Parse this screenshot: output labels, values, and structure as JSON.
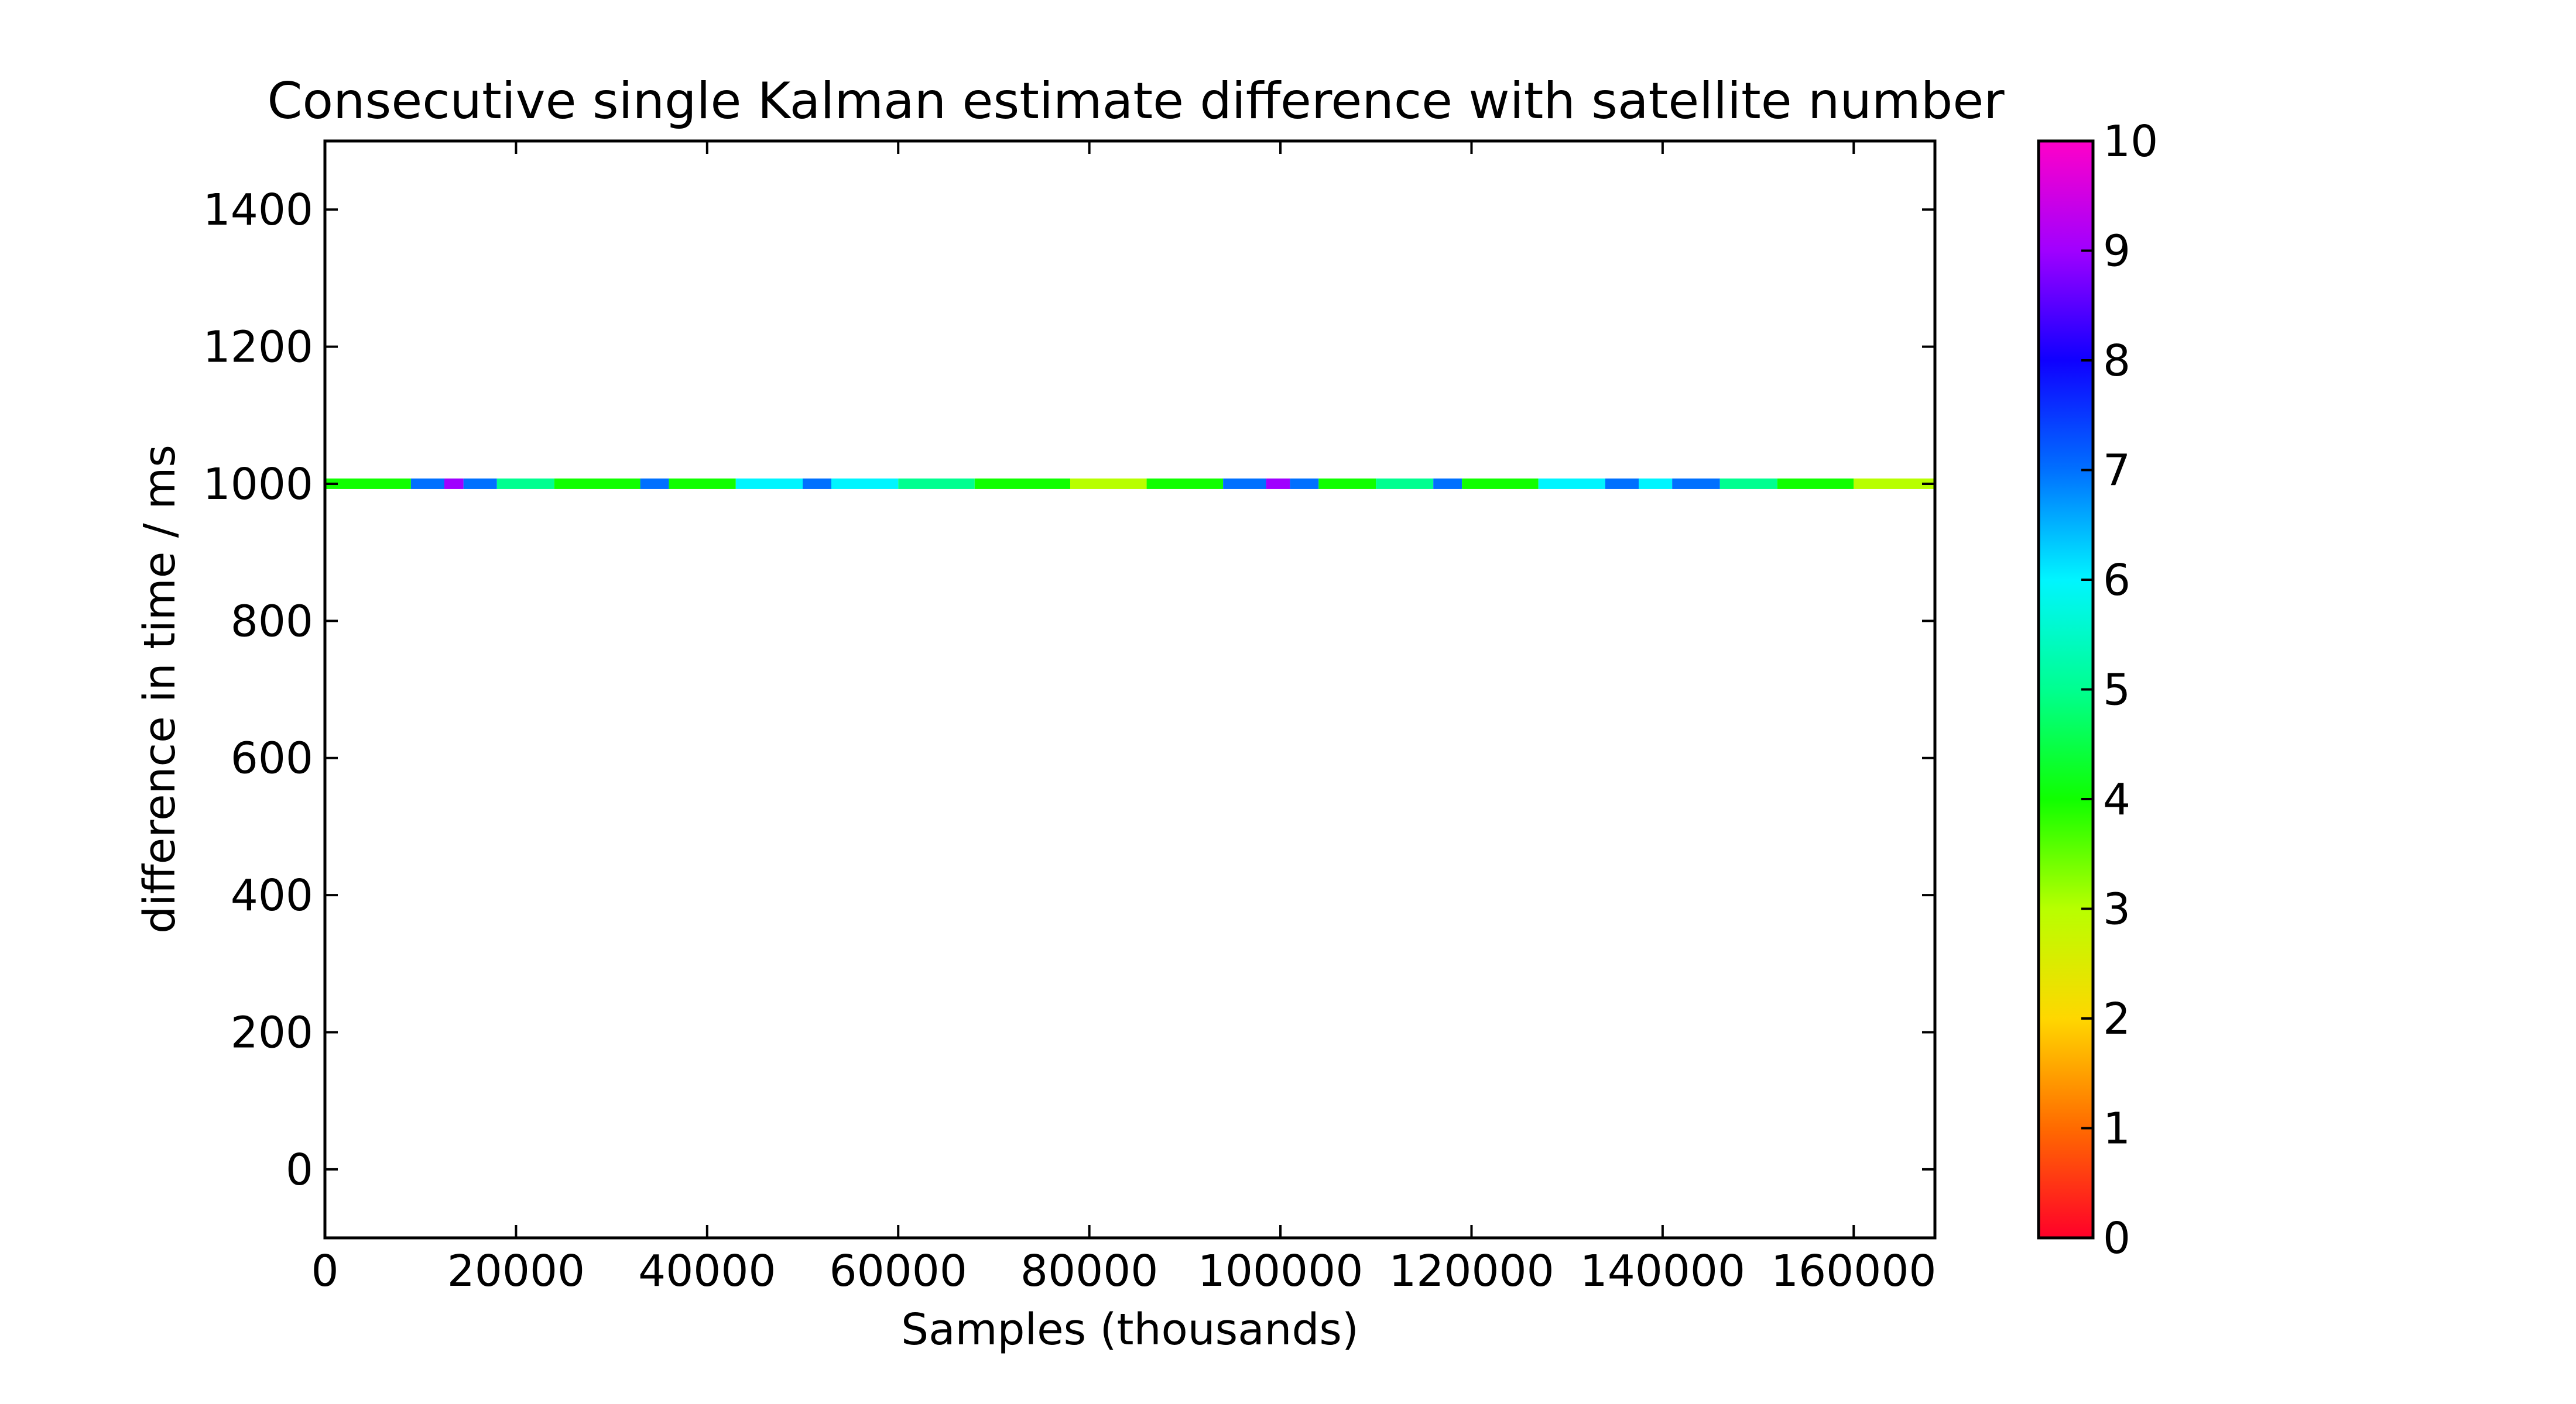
{
  "chart_data": {
    "type": "scatter",
    "title": "Consecutive single Kalman estimate difference with satellite number",
    "xlabel": "Samples (thousands)",
    "ylabel": "difference in time / ms",
    "xlim": [
      0,
      168500
    ],
    "ylim": [
      -100,
      1500
    ],
    "xticks": [
      0,
      20000,
      40000,
      60000,
      80000,
      100000,
      120000,
      140000,
      160000
    ],
    "yticks": [
      0,
      200,
      400,
      600,
      800,
      1000,
      1200,
      1400
    ],
    "grid": false,
    "colorbar": {
      "colormap": "gist_rainbow",
      "range": [
        0,
        10
      ],
      "ticks": [
        0,
        1,
        2,
        3,
        4,
        5,
        6,
        7,
        8,
        9,
        10
      ]
    },
    "series_segments": [
      {
        "x_start": 0,
        "x_end": 9000,
        "y": 1000,
        "satellites": 4
      },
      {
        "x_start": 9000,
        "x_end": 12500,
        "y": 1000,
        "satellites": 7
      },
      {
        "x_start": 12500,
        "x_end": 14500,
        "y": 1000,
        "satellites": 9
      },
      {
        "x_start": 14500,
        "x_end": 18000,
        "y": 1000,
        "satellites": 7
      },
      {
        "x_start": 18000,
        "x_end": 24000,
        "y": 1000,
        "satellites": 5
      },
      {
        "x_start": 24000,
        "x_end": 33000,
        "y": 1000,
        "satellites": 4
      },
      {
        "x_start": 33000,
        "x_end": 36000,
        "y": 1000,
        "satellites": 7
      },
      {
        "x_start": 36000,
        "x_end": 43000,
        "y": 1000,
        "satellites": 4
      },
      {
        "x_start": 43000,
        "x_end": 50000,
        "y": 1000,
        "satellites": 6
      },
      {
        "x_start": 50000,
        "x_end": 53000,
        "y": 1000,
        "satellites": 7
      },
      {
        "x_start": 53000,
        "x_end": 60000,
        "y": 1000,
        "satellites": 6
      },
      {
        "x_start": 60000,
        "x_end": 68000,
        "y": 1000,
        "satellites": 5
      },
      {
        "x_start": 68000,
        "x_end": 78000,
        "y": 1000,
        "satellites": 4
      },
      {
        "x_start": 78000,
        "x_end": 86000,
        "y": 1000,
        "satellites": 3
      },
      {
        "x_start": 86000,
        "x_end": 94000,
        "y": 1000,
        "satellites": 4
      },
      {
        "x_start": 94000,
        "x_end": 98500,
        "y": 1000,
        "satellites": 7
      },
      {
        "x_start": 98500,
        "x_end": 101000,
        "y": 1000,
        "satellites": 9
      },
      {
        "x_start": 101000,
        "x_end": 104000,
        "y": 1000,
        "satellites": 7
      },
      {
        "x_start": 104000,
        "x_end": 110000,
        "y": 1000,
        "satellites": 4
      },
      {
        "x_start": 110000,
        "x_end": 116000,
        "y": 1000,
        "satellites": 5
      },
      {
        "x_start": 116000,
        "x_end": 119000,
        "y": 1000,
        "satellites": 7
      },
      {
        "x_start": 119000,
        "x_end": 127000,
        "y": 1000,
        "satellites": 4
      },
      {
        "x_start": 127000,
        "x_end": 134000,
        "y": 1000,
        "satellites": 6
      },
      {
        "x_start": 134000,
        "x_end": 137500,
        "y": 1000,
        "satellites": 7
      },
      {
        "x_start": 137500,
        "x_end": 141000,
        "y": 1000,
        "satellites": 6
      },
      {
        "x_start": 141000,
        "x_end": 146000,
        "y": 1000,
        "satellites": 7
      },
      {
        "x_start": 146000,
        "x_end": 152000,
        "y": 1000,
        "satellites": 5
      },
      {
        "x_start": 152000,
        "x_end": 160000,
        "y": 1000,
        "satellites": 4
      },
      {
        "x_start": 160000,
        "x_end": 168500,
        "y": 1000,
        "satellites": 3
      }
    ]
  }
}
